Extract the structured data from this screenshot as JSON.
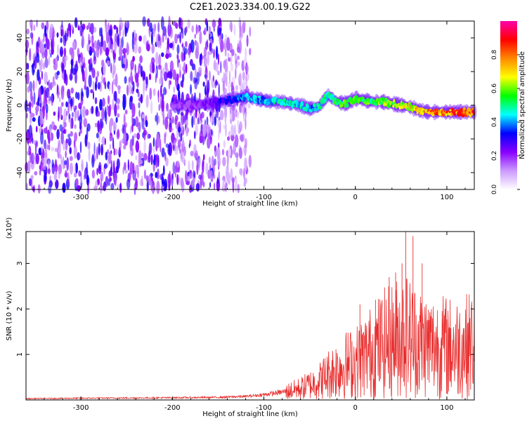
{
  "title": "C2E1.2023.334.00.19.G22",
  "chart_data": [
    {
      "type": "heatmap",
      "name": "spectrogram",
      "xlabel": "Height of straight line (km)",
      "ylabel": "Frequency (Hz)",
      "xlim": [
        -360,
        130
      ],
      "ylim": [
        -50,
        50
      ],
      "xticks": [
        -300,
        -200,
        -100,
        0,
        100
      ],
      "yticks": [
        -40,
        -20,
        0,
        20,
        40
      ],
      "grid": false,
      "colorbar": {
        "label": "Normalized spectral amplitude",
        "ticks": [
          "0.0",
          "0.2",
          "0.4",
          "0.6",
          "0.8"
        ],
        "tick_values": [
          0.0,
          0.2,
          0.4,
          0.6,
          0.8
        ],
        "range": [
          0,
          1
        ],
        "colors": [
          "#ffffff",
          "#cc99ff",
          "#8800ff",
          "#0000ff",
          "#00ffff",
          "#00ff00",
          "#ffff00",
          "#ff8800",
          "#ff0000",
          "#ff00aa"
        ]
      },
      "noise_region": {
        "x_range": [
          -360,
          -115
        ],
        "amplitude": "0.1-0.3"
      },
      "signal_trace": {
        "x": [
          -200,
          -180,
          -160,
          -140,
          -120,
          -100,
          -90,
          -80,
          -70,
          -60,
          -50,
          -40,
          -30,
          -20,
          -10,
          0,
          10,
          20,
          30,
          40,
          50,
          60,
          70,
          80,
          90,
          100,
          110,
          120,
          130
        ],
        "frequency": [
          0,
          0,
          1,
          3,
          5,
          3,
          2,
          2,
          1,
          0,
          -2,
          -1,
          6,
          2,
          1,
          4,
          3,
          2,
          2,
          1,
          0,
          -1,
          -3,
          -4,
          -4,
          -4,
          -4,
          -4,
          -4
        ],
        "amplitude": [
          0.2,
          0.2,
          0.25,
          0.35,
          0.45,
          0.45,
          0.5,
          0.5,
          0.5,
          0.5,
          0.45,
          0.5,
          0.55,
          0.6,
          0.6,
          0.6,
          0.6,
          0.6,
          0.65,
          0.65,
          0.7,
          0.75,
          0.8,
          0.85,
          0.85,
          0.85,
          0.9,
          0.9,
          0.9
        ]
      }
    },
    {
      "type": "line",
      "name": "snr",
      "xlabel": "Height of straight line (km)",
      "ylabel": "SNR (10 * v/v)",
      "y_multiplier": "(x10⁴)",
      "xlim": [
        -360,
        130
      ],
      "ylim": [
        0,
        3.7
      ],
      "xticks": [
        -300,
        -200,
        -100,
        0,
        100
      ],
      "yticks": [
        1,
        2,
        3
      ],
      "grid": false,
      "color": "#e83030",
      "x": [
        -360,
        -300,
        -200,
        -150,
        -120,
        -100,
        -80,
        -60,
        -40,
        -30,
        -20,
        -10,
        0,
        10,
        20,
        30,
        40,
        50,
        55,
        60,
        70,
        80,
        90,
        100,
        110,
        120,
        130
      ],
      "y": [
        0.03,
        0.04,
        0.05,
        0.06,
        0.08,
        0.12,
        0.18,
        0.28,
        0.45,
        0.62,
        0.75,
        0.85,
        0.9,
        1.05,
        1.2,
        1.35,
        1.45,
        1.55,
        1.6,
        1.5,
        1.4,
        1.3,
        1.3,
        1.28,
        1.25,
        1.3,
        1.35
      ],
      "spikes": {
        "x": [
          5,
          22,
          37,
          44,
          51,
          55,
          63,
          73
        ],
        "y": [
          2.1,
          2.2,
          2.7,
          2.8,
          3.0,
          3.7,
          3.6,
          3.0
        ]
      }
    }
  ]
}
